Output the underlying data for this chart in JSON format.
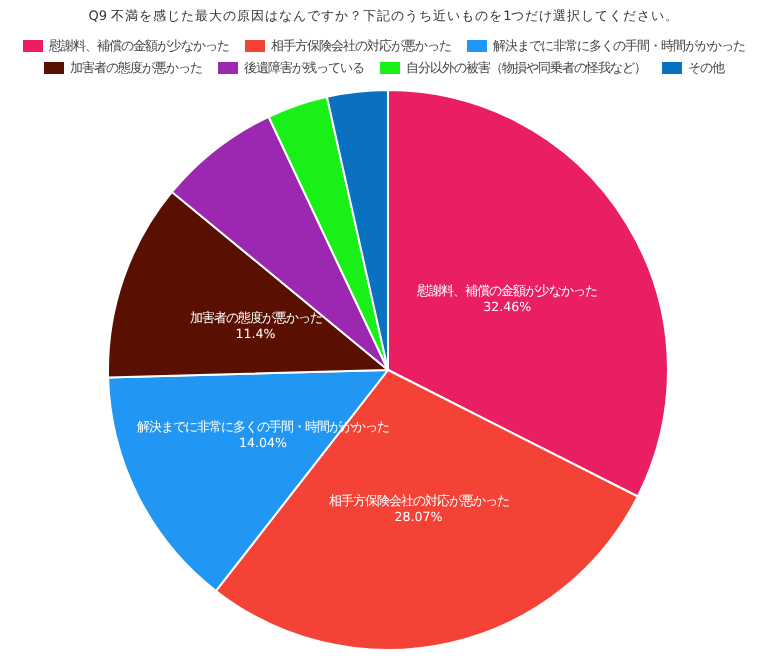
{
  "chart_data": {
    "type": "pie",
    "title": "Q9 不満を感じた最大の原因はなんですか？下記のうち近いものを1つだけ選択してください。",
    "categories": [
      "慰謝料、補償の金額が少なかった",
      "相手方保険会社の対応が悪かった",
      "解決までに非常に多くの手間・時間がかかった",
      "加害者の態度が悪かった",
      "後遺障害が残っている",
      "自分以外の被害（物損や同乗者の怪我など）",
      "その他"
    ],
    "values": [
      32.46,
      28.07,
      14.04,
      11.4,
      7.02,
      3.51,
      3.5
    ],
    "value_labels": [
      "32.46%",
      "28.07%",
      "14.04%",
      "11.4%",
      null,
      null,
      null
    ],
    "colors": [
      "#e91e63",
      "#f44336",
      "#2196f3",
      "#5a1000",
      "#9c27b0",
      "#18f018",
      "#0a70c0"
    ],
    "legend": "top"
  }
}
